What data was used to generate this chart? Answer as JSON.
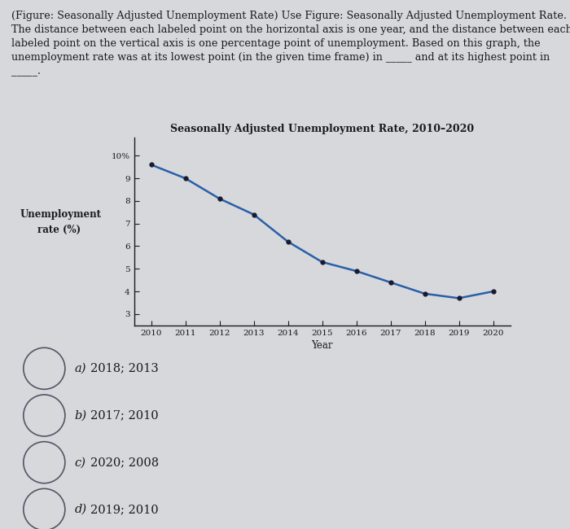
{
  "title": "Seasonally Adjusted Unemployment Rate, 2010–2020",
  "xlabel": "Year",
  "ylabel_line1": "Unemployment",
  "ylabel_line2": "rate (%)",
  "years": [
    2010,
    2011,
    2012,
    2013,
    2014,
    2015,
    2016,
    2017,
    2018,
    2019,
    2020
  ],
  "unemployment": [
    9.6,
    9.0,
    8.1,
    7.4,
    6.2,
    5.3,
    4.9,
    4.4,
    3.9,
    3.7,
    4.0
  ],
  "yticks": [
    3,
    4,
    5,
    6,
    7,
    8,
    9,
    10
  ],
  "ytick_labels": [
    "3",
    "4",
    "5",
    "6",
    "7",
    "8",
    "9",
    "10%"
  ],
  "ylim": [
    2.5,
    10.8
  ],
  "xlim": [
    2009.5,
    2020.5
  ],
  "line_color": "#2a5fa8",
  "marker_color": "#1a1a2e",
  "bg_color": "#d6d8dc",
  "plot_bg": "#d6d8dc",
  "text_color": "#1a1a1a",
  "header_text_line1": "(Figure: Seasonally Adjusted Unemployment Rate) Use Figure: Seasonally Adjusted Unemployment Rate.",
  "header_text_line2": "The distance between each labeled point on the horizontal axis is one year, and the distance between each",
  "header_text_line3": "labeled point on the vertical axis is one percentage point of unemployment. Based on this graph, the",
  "header_text_line4": "unemployment rate was at its lowest point (in the given time frame) in _____ and at its highest point in",
  "header_text_line5": "_____.",
  "choices": [
    [
      "a)",
      "2018; 2013"
    ],
    [
      "b)",
      "2017; 2010"
    ],
    [
      "c)",
      "2020; 2008"
    ],
    [
      "d)",
      "2019; 2010"
    ]
  ],
  "header_fontsize": 9.2,
  "choice_fontsize": 10.5,
  "title_fontsize": 9.0,
  "axis_label_fontsize": 8.5,
  "tick_fontsize": 7.5
}
